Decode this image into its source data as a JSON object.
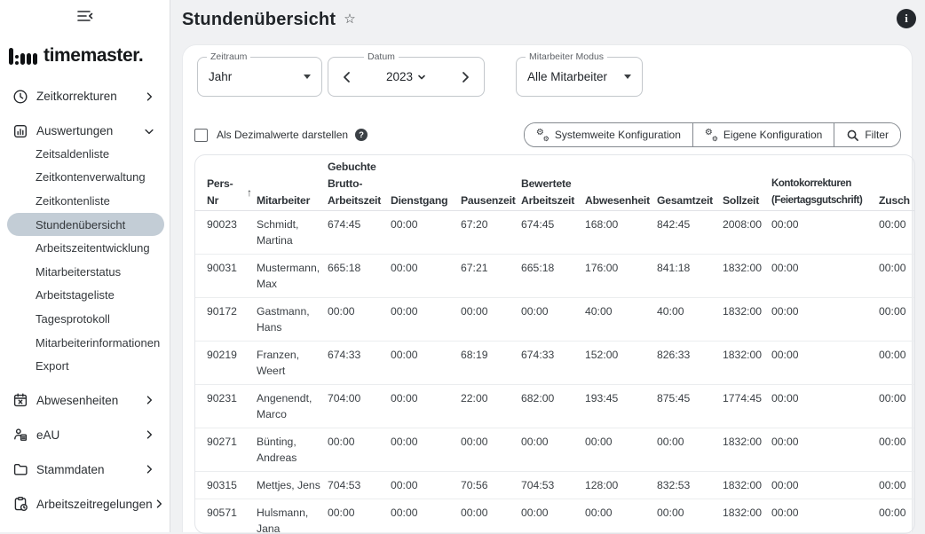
{
  "colors": {
    "page_bg": "#f0f1f3",
    "card_bg": "#ffffff",
    "active_item_bg": "#c3cdd6",
    "dark_badge_bg": "#24282d"
  },
  "sidebar": {
    "logo_text": "timemaster.",
    "items": [
      {
        "label": "Zeitkorrekturen",
        "icon": "clock",
        "chevron": "right"
      },
      {
        "label": "Auswertungen",
        "icon": "bar-chart",
        "chevron": "down",
        "expanded": true,
        "children": [
          "Zeitsaldenliste",
          "Zeitkontenverwaltung",
          "Zeitkontenliste",
          "Stundenübersicht",
          "Arbeitszeitentwicklung",
          "Mitarbeiterstatus",
          "Arbeitstageliste",
          "Tagesprotokoll",
          "Mitarbeiterinformationen",
          "Export"
        ],
        "active_child": "Stundenübersicht"
      },
      {
        "label": "Abwesenheiten",
        "icon": "calendar-x",
        "chevron": "right"
      },
      {
        "label": "eAU",
        "icon": "person-document",
        "chevron": "right"
      },
      {
        "label": "Stammdaten",
        "icon": "folder",
        "chevron": "right"
      },
      {
        "label": "Arbeitszeitregelungen",
        "icon": "clipboard-clock",
        "chevron": "right"
      }
    ]
  },
  "header": {
    "title": "Stundenübersicht",
    "favorite_icon": "star-outline",
    "info_icon": "info",
    "info_label": "i"
  },
  "filters": {
    "zeitraum": {
      "label": "Zeitraum",
      "value": "Jahr"
    },
    "datum": {
      "label": "Datum",
      "value": "2023"
    },
    "mitarbeiter_modus": {
      "label": "Mitarbeiter Modus",
      "value": "Alle Mitarbeiter"
    }
  },
  "controls": {
    "decimal_checkbox_label": "Als Dezimalwerte darstellen",
    "decimal_checkbox_checked": false,
    "help_icon_label": "?",
    "buttons": [
      {
        "label": "Systemweite Konfiguration",
        "icon": "gears"
      },
      {
        "label": "Eigene Konfiguration",
        "icon": "gears"
      },
      {
        "label": "Filter",
        "icon": "search"
      }
    ]
  },
  "table": {
    "sort_column": "Pers-Nr",
    "sort_direction": "asc",
    "sort_icon": "arrow-up",
    "columns": [
      "Pers-Nr",
      "Mitarbeiter",
      "Gebuchte Brutto-Arbeitszeit",
      "Dienstgang",
      "Pausenzeit",
      "Bewertete Arbeitszeit",
      "Abwesenheit",
      "Gesamtzeit",
      "Sollzeit",
      "Kontokorrekturen (Feiertagsgutschrift)",
      "Zusch"
    ],
    "rows": [
      [
        "90023",
        "Schmidt, Martina",
        "674:45",
        "00:00",
        "67:20",
        "674:45",
        "168:00",
        "842:45",
        "2008:00",
        "00:00",
        "00:00"
      ],
      [
        "90031",
        "Mustermann, Max",
        "665:18",
        "00:00",
        "67:21",
        "665:18",
        "176:00",
        "841:18",
        "1832:00",
        "00:00",
        "00:00"
      ],
      [
        "90172",
        "Gastmann, Hans",
        "00:00",
        "00:00",
        "00:00",
        "00:00",
        "40:00",
        "40:00",
        "1832:00",
        "00:00",
        "00:00"
      ],
      [
        "90219",
        "Franzen, Weert",
        "674:33",
        "00:00",
        "68:19",
        "674:33",
        "152:00",
        "826:33",
        "1832:00",
        "00:00",
        "00:00"
      ],
      [
        "90231",
        "Angenendt, Marco",
        "704:00",
        "00:00",
        "22:00",
        "682:00",
        "193:45",
        "875:45",
        "1774:45",
        "00:00",
        "00:00"
      ],
      [
        "90271",
        "Bünting, Andreas",
        "00:00",
        "00:00",
        "00:00",
        "00:00",
        "00:00",
        "00:00",
        "1832:00",
        "00:00",
        "00:00"
      ],
      [
        "90315",
        "Mettjes, Jens",
        "704:53",
        "00:00",
        "70:56",
        "704:53",
        "128:00",
        "832:53",
        "1832:00",
        "00:00",
        "00:00"
      ],
      [
        "90571",
        "Hulsmann, Jana",
        "00:00",
        "00:00",
        "00:00",
        "00:00",
        "00:00",
        "00:00",
        "1832:00",
        "00:00",
        "00:00"
      ]
    ]
  }
}
